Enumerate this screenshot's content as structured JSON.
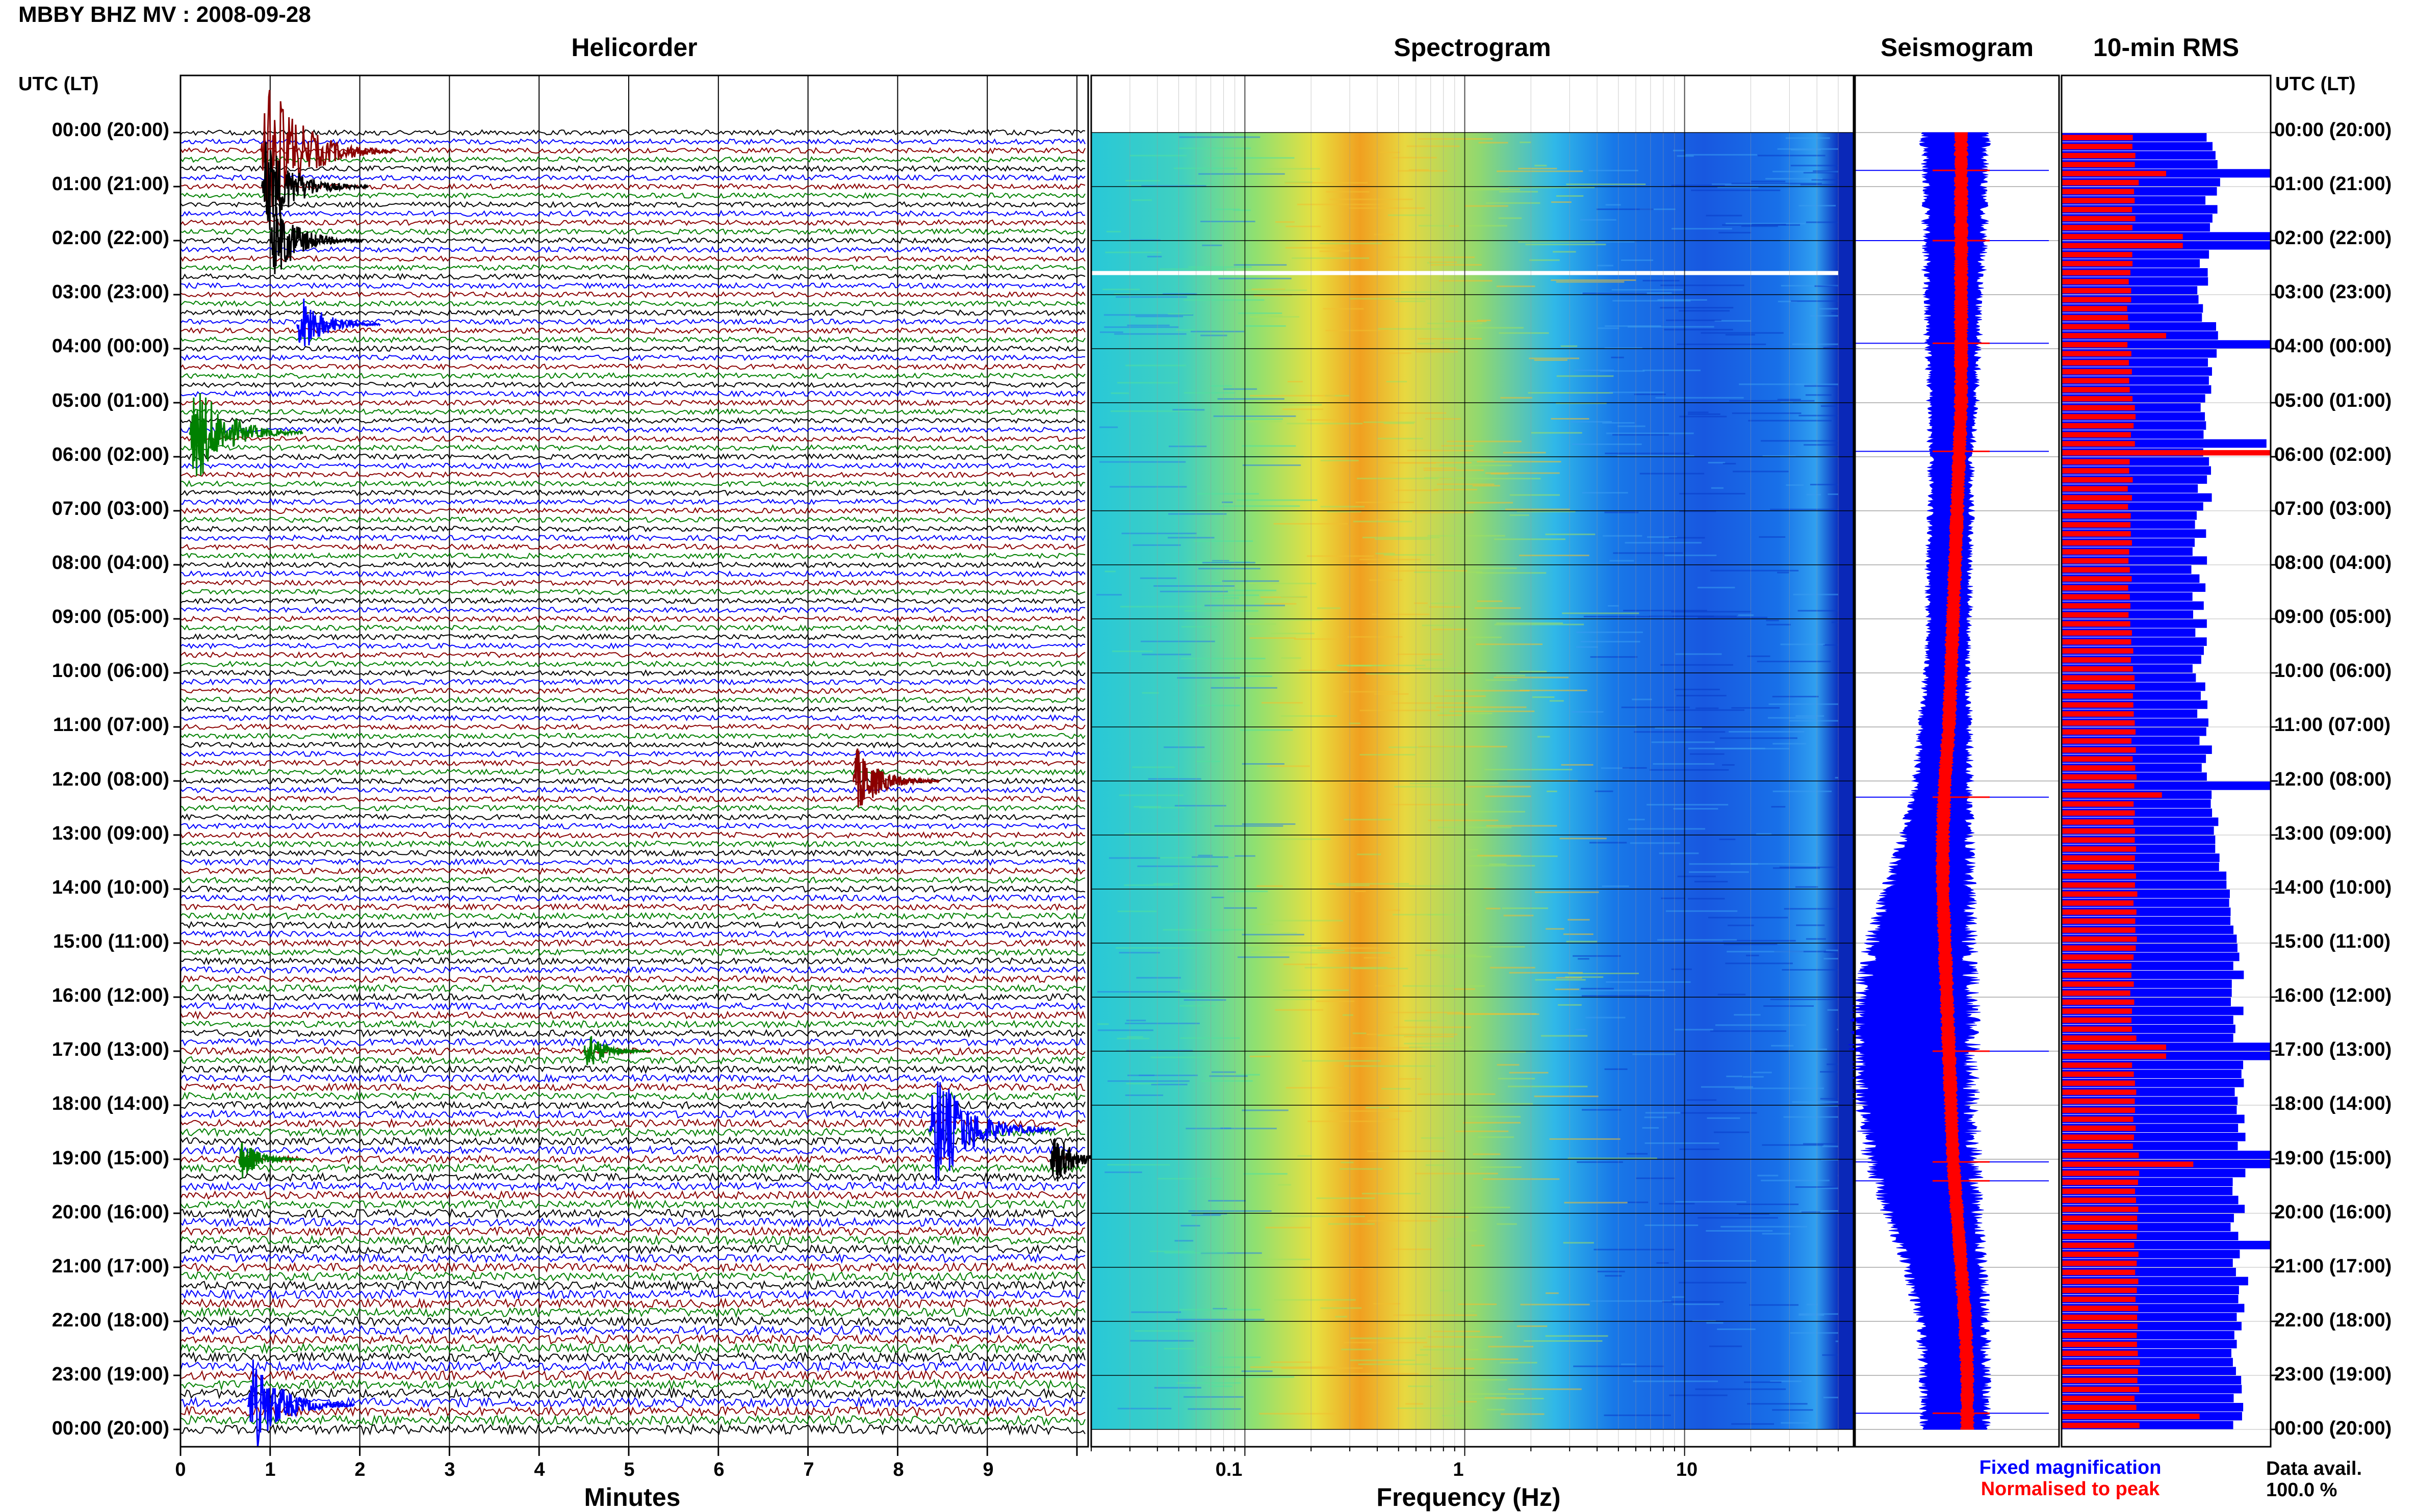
{
  "page": {
    "title": "MBBY BHZ MV : 2008-09-28"
  },
  "panels": {
    "helicorder": "Helicorder",
    "spectrogram": "Spectrogram",
    "seismogram": "Seismogram",
    "rms": "10-min RMS"
  },
  "axis_headers": {
    "left": "UTC (LT)",
    "right": "UTC (LT)"
  },
  "axis_labels": {
    "minutes": "Minutes",
    "frequency": "Frequency (Hz)"
  },
  "hour_labels": [
    "00:00 (20:00)",
    "01:00 (21:00)",
    "02:00 (22:00)",
    "03:00 (23:00)",
    "04:00 (00:00)",
    "05:00 (01:00)",
    "06:00 (02:00)",
    "07:00 (03:00)",
    "08:00 (04:00)",
    "09:00 (05:00)",
    "10:00 (06:00)",
    "11:00 (07:00)",
    "12:00 (08:00)",
    "13:00 (09:00)",
    "14:00 (10:00)",
    "15:00 (11:00)",
    "16:00 (12:00)",
    "17:00 (13:00)",
    "18:00 (14:00)",
    "19:00 (15:00)",
    "20:00 (16:00)",
    "21:00 (17:00)",
    "22:00 (18:00)",
    "23:00 (19:00)",
    "00:00 (20:00)"
  ],
  "minute_ticks": [
    "0",
    "1",
    "2",
    "3",
    "4",
    "5",
    "6",
    "7",
    "8",
    "9"
  ],
  "frequency_ticks": [
    "0.1",
    "1",
    "10"
  ],
  "legend": {
    "fixed": "Fixed magnification",
    "normalised": "Normalised to peak",
    "fixed_color": "#0000ff",
    "normalised_color": "#ff0000"
  },
  "data_availability": {
    "label": "Data avail.",
    "value": "100.0 %"
  },
  "chart_data": [
    {
      "type": "line",
      "name": "helicorder",
      "xlabel": "Minutes",
      "xlim": [
        0,
        10
      ],
      "trace_colors": [
        "#000000",
        "#0000ff",
        "#8b0000",
        "#008000"
      ],
      "lines_per_hour": 6,
      "events": [
        {
          "hour": 0.35,
          "minute": 0.9,
          "amp": 3.0,
          "color": "#8b0000"
        },
        {
          "hour": 1.0,
          "minute": 0.9,
          "amp": 2.0,
          "color": "#000000"
        },
        {
          "hour": 2.0,
          "minute": 1.0,
          "amp": 1.6,
          "color": "#000000"
        },
        {
          "hour": 3.55,
          "minute": 1.3,
          "amp": 1.3,
          "color": "#0000ff"
        },
        {
          "hour": 5.55,
          "minute": 0.1,
          "amp": 2.2,
          "color": "#008000"
        },
        {
          "hour": 12.0,
          "minute": 7.5,
          "amp": 1.4,
          "color": "#8b0000"
        },
        {
          "hour": 17.0,
          "minute": 4.5,
          "amp": 0.8,
          "color": "#008000"
        },
        {
          "hour": 18.45,
          "minute": 8.35,
          "amp": 2.6,
          "color": "#0000ff"
        },
        {
          "hour": 19.0,
          "minute": 9.7,
          "amp": 1.1,
          "color": "#000000"
        },
        {
          "hour": 19.0,
          "minute": 0.65,
          "amp": 0.8,
          "color": "#008000"
        },
        {
          "hour": 23.55,
          "minute": 0.75,
          "amp": 2.0,
          "color": "#0000ff"
        }
      ]
    },
    {
      "type": "heatmap",
      "name": "spectrogram",
      "xlabel": "Frequency (Hz)",
      "xscale": "log",
      "xlim": [
        0.02,
        50
      ],
      "y": "hour of day UTC",
      "ylim": [
        0,
        24
      ],
      "peak_frequency_hz": 0.3,
      "gap_hour": 2.6
    },
    {
      "type": "line",
      "name": "seismogram",
      "series": [
        {
          "name": "Fixed magnification",
          "color": "#0000ff",
          "hours": [
            0,
            1,
            2,
            3,
            4,
            5,
            6,
            7,
            8,
            9,
            10,
            11,
            12,
            13,
            14,
            15,
            16,
            17,
            18,
            19,
            20,
            21,
            22,
            23,
            24
          ],
          "center": [
            0.49,
            0.49,
            0.49,
            0.48,
            0.48,
            0.48,
            0.47,
            0.47,
            0.46,
            0.46,
            0.45,
            0.44,
            0.43,
            0.4,
            0.36,
            0.32,
            0.3,
            0.29,
            0.3,
            0.33,
            0.38,
            0.44,
            0.48,
            0.49,
            0.49
          ],
          "halfwidth": [
            0.15,
            0.14,
            0.14,
            0.13,
            0.12,
            0.11,
            0.1,
            0.1,
            0.1,
            0.1,
            0.1,
            0.12,
            0.13,
            0.16,
            0.2,
            0.24,
            0.27,
            0.28,
            0.27,
            0.25,
            0.22,
            0.18,
            0.16,
            0.15,
            0.15
          ]
        },
        {
          "name": "Normalised to peak",
          "color": "#ff0000",
          "hours": [
            0,
            1,
            2,
            3,
            4,
            5,
            6,
            7,
            8,
            9,
            10,
            11,
            12,
            13,
            14,
            15,
            16,
            17,
            18,
            19,
            20,
            21,
            22,
            23,
            24
          ],
          "center": [
            0.52,
            0.52,
            0.52,
            0.52,
            0.52,
            0.52,
            0.51,
            0.5,
            0.49,
            0.48,
            0.47,
            0.46,
            0.44,
            0.43,
            0.43,
            0.44,
            0.45,
            0.46,
            0.47,
            0.48,
            0.5,
            0.52,
            0.54,
            0.55,
            0.55
          ],
          "halfwidth": [
            0.03,
            0.03,
            0.03,
            0.03,
            0.03,
            0.03,
            0.03,
            0.03,
            0.03,
            0.03,
            0.03,
            0.03,
            0.03,
            0.03,
            0.03,
            0.03,
            0.03,
            0.03,
            0.03,
            0.03,
            0.03,
            0.03,
            0.03,
            0.03,
            0.03
          ]
        }
      ],
      "spikes_hours": [
        0.7,
        2.0,
        3.9,
        5.9,
        12.3,
        17.0,
        19.05,
        19.4,
        23.7
      ]
    },
    {
      "type": "bar",
      "name": "10-min RMS",
      "orientation": "horizontal",
      "interval_minutes": 10,
      "series": [
        {
          "name": "Fixed magnification",
          "color": "#0000ff",
          "hour_profile": [
            0.7,
            0.72,
            0.7,
            0.68,
            0.72,
            0.7,
            0.7,
            0.68,
            0.66,
            0.66,
            0.66,
            0.68,
            0.72,
            0.76,
            0.8,
            0.82,
            0.84,
            0.86,
            0.84,
            0.84,
            0.84,
            0.86,
            0.84,
            0.84,
            0.84
          ],
          "spikes": [
            {
              "hour": 0.8,
              "value": 1.0
            },
            {
              "hour": 2.0,
              "value": 1.0
            },
            {
              "hour": 3.9,
              "value": 1.0
            },
            {
              "hour": 5.8,
              "value": 0.98
            },
            {
              "hour": 12.1,
              "value": 1.0
            },
            {
              "hour": 17.0,
              "value": 1.0
            },
            {
              "hour": 19.0,
              "value": 1.0
            },
            {
              "hour": 20.6,
              "value": 1.0
            }
          ]
        },
        {
          "name": "Normalised to peak",
          "color": "#ff0000",
          "hour_profile": [
            0.34,
            0.36,
            0.34,
            0.32,
            0.33,
            0.34,
            0.34,
            0.32,
            0.33,
            0.33,
            0.34,
            0.34,
            0.35,
            0.34,
            0.35,
            0.35,
            0.34,
            0.35,
            0.34,
            0.36,
            0.36,
            0.36,
            0.36,
            0.36,
            0.36
          ],
          "spikes": [
            {
              "hour": 0.8,
              "value": 0.5
            },
            {
              "hour": 2.0,
              "value": 0.58
            },
            {
              "hour": 3.8,
              "value": 0.5
            },
            {
              "hour": 5.95,
              "value": 1.0
            },
            {
              "hour": 12.25,
              "value": 0.48
            },
            {
              "hour": 17.0,
              "value": 0.5
            },
            {
              "hour": 19.05,
              "value": 0.63
            },
            {
              "hour": 23.8,
              "value": 0.66
            }
          ]
        }
      ]
    }
  ]
}
